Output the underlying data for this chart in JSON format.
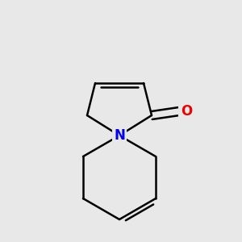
{
  "background_color": "#e8e8e8",
  "bond_color": "#000000",
  "N_color": "#0000ee",
  "O_color": "#ee0000",
  "bond_width": 1.8,
  "font_size_N": 12,
  "font_size_O": 12,
  "figsize": [
    3.0,
    3.0
  ],
  "dpi": 100
}
